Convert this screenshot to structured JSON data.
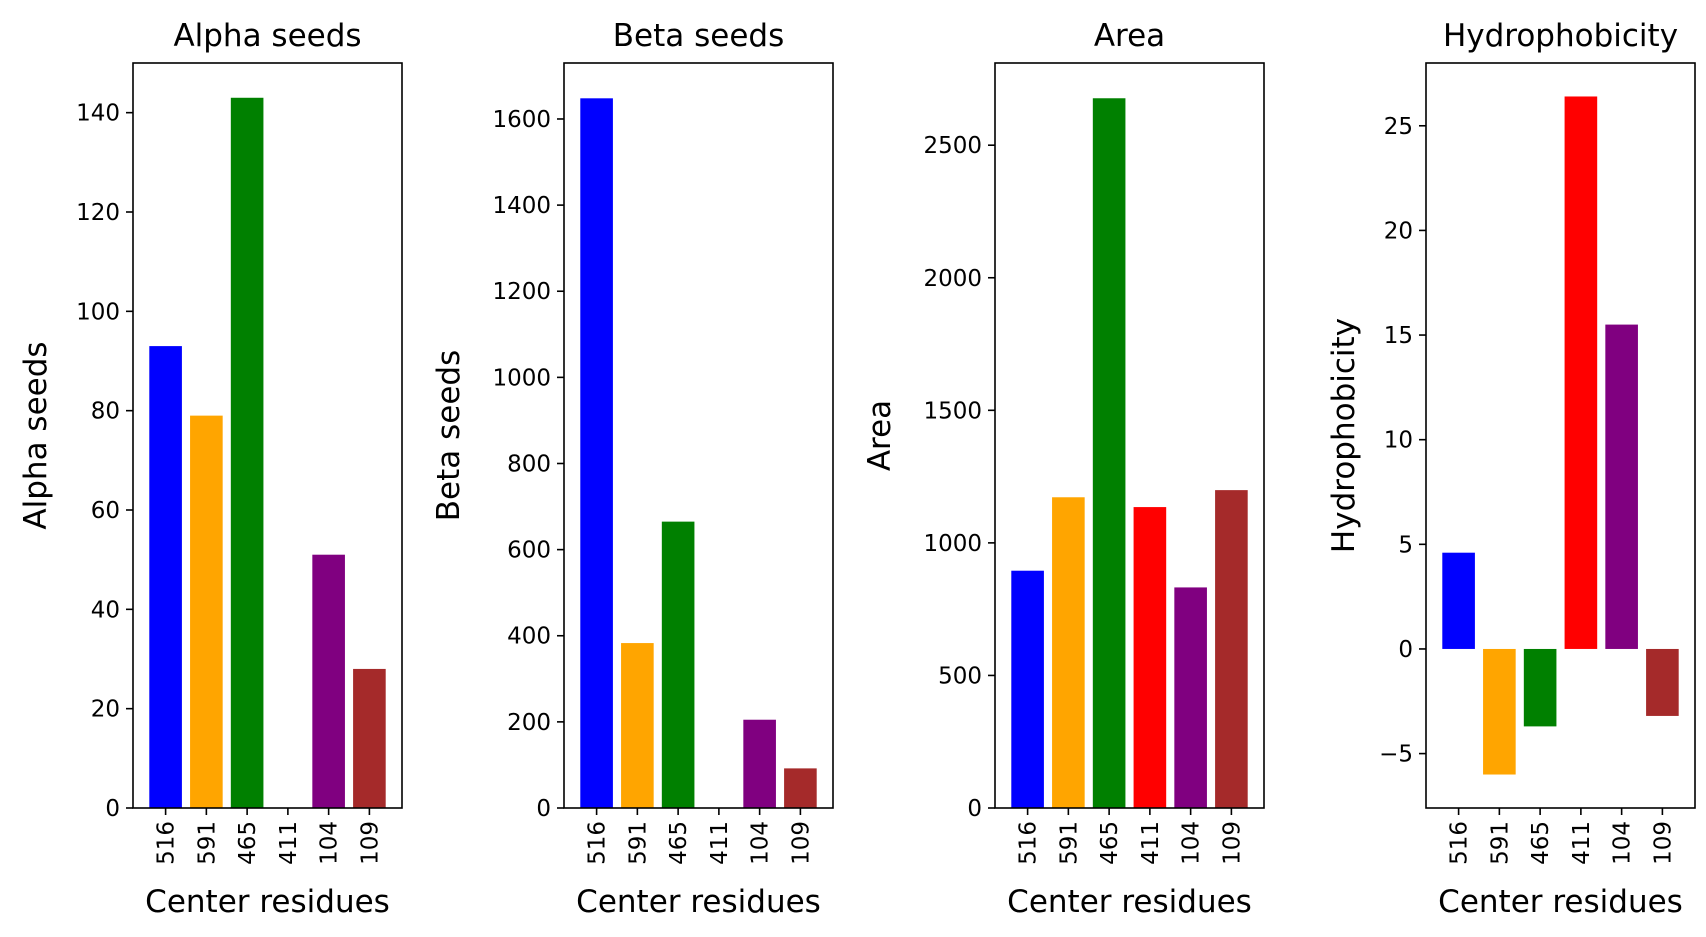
{
  "colors": [
    "#0000ff",
    "#ffa500",
    "#008000",
    "#ff0000",
    "#800080",
    "#a52a2a"
  ],
  "chart_data": [
    {
      "type": "bar",
      "title": "Alpha seeds",
      "xlabel": "Center residues",
      "ylabel": "Alpha seeds",
      "categories": [
        "516",
        "591",
        "465",
        "411",
        "104",
        "109"
      ],
      "values": [
        93,
        79,
        143,
        0,
        51,
        28
      ],
      "ylim": [
        0,
        150
      ],
      "yticks": [
        0,
        20,
        40,
        60,
        80,
        100,
        120,
        140
      ],
      "ytick_labels": [
        "0",
        "20",
        "40",
        "60",
        "80",
        "100",
        "120",
        "140"
      ],
      "grid": false
    },
    {
      "type": "bar",
      "title": "Beta seeds",
      "xlabel": "Center residues",
      "ylabel": "Beta seeds",
      "categories": [
        "516",
        "591",
        "465",
        "411",
        "104",
        "109"
      ],
      "values": [
        1648,
        383,
        665,
        0,
        205,
        92
      ],
      "ylim": [
        0,
        1730
      ],
      "yticks": [
        0,
        200,
        400,
        600,
        800,
        1000,
        1200,
        1400,
        1600
      ],
      "ytick_labels": [
        "0",
        "200",
        "400",
        "600",
        "800",
        "1000",
        "1200",
        "1400",
        "1600"
      ],
      "grid": false
    },
    {
      "type": "bar",
      "title": "Area",
      "xlabel": "Center residues",
      "ylabel": "Area",
      "categories": [
        "516",
        "591",
        "465",
        "411",
        "104",
        "109"
      ],
      "values": [
        895,
        1172,
        2677,
        1135,
        832,
        1199
      ],
      "ylim": [
        0,
        2810
      ],
      "yticks": [
        0,
        500,
        1000,
        1500,
        2000,
        2500
      ],
      "ytick_labels": [
        "0",
        "500",
        "1000",
        "1500",
        "2000",
        "2500"
      ],
      "grid": false
    },
    {
      "type": "bar",
      "title": "Hydrophobicity",
      "xlabel": "Center residues",
      "ylabel": "Hydrophobicity",
      "categories": [
        "516",
        "591",
        "465",
        "411",
        "104",
        "109"
      ],
      "values": [
        4.6,
        -6.0,
        -3.7,
        26.4,
        15.5,
        -3.2
      ],
      "ylim": [
        -7.6,
        28.0
      ],
      "yticks": [
        -5,
        0,
        5,
        10,
        15,
        20,
        25
      ],
      "ytick_labels": [
        "−5",
        "0",
        "5",
        "10",
        "15",
        "20",
        "25"
      ],
      "grid": false
    }
  ]
}
